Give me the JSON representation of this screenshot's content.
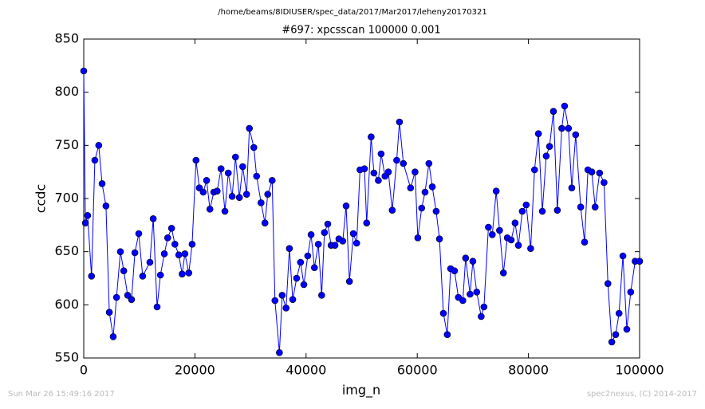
{
  "chart_data": {
    "type": "line",
    "suptitle": "/home/beams/8IDIUSER/spec_data/2017/Mar2017/leheny20170321",
    "title": "#697: xpcsscan 100000 0.001",
    "x_label": "img_n",
    "y_label": "ccdc",
    "footer_left": "Sun Mar 26 15:49:16 2017",
    "footer_right": "spec2nexus, (C) 2014-2017",
    "x": [
      0,
      300,
      700,
      1400,
      2000,
      2700,
      3300,
      4000,
      4600,
      5300,
      5900,
      6600,
      7200,
      7900,
      8600,
      9200,
      9900,
      10600,
      11900,
      12500,
      13200,
      13800,
      14500,
      15100,
      15800,
      16400,
      17100,
      17700,
      18200,
      18900,
      19500,
      20200,
      20800,
      21500,
      22100,
      22700,
      23400,
      24000,
      24700,
      25400,
      26000,
      26700,
      27300,
      28000,
      28600,
      29300,
      29800,
      30600,
      31100,
      31900,
      32600,
      33100,
      33900,
      34400,
      35200,
      35700,
      36400,
      37000,
      37600,
      38300,
      39000,
      39600,
      40300,
      40900,
      41500,
      42200,
      42800,
      43300,
      43900,
      44500,
      45200,
      45900,
      46600,
      47200,
      47800,
      48500,
      49100,
      49700,
      50500,
      50900,
      51700,
      52200,
      53000,
      53500,
      54200,
      54800,
      55500,
      56300,
      56800,
      57500,
      58800,
      59600,
      60100,
      60800,
      61400,
      62100,
      62700,
      63400,
      64000,
      64700,
      65400,
      66000,
      66700,
      67400,
      68200,
      68700,
      69500,
      70000,
      70700,
      71500,
      72000,
      72800,
      73500,
      74200,
      74800,
      75500,
      76200,
      76900,
      77600,
      78200,
      78900,
      79600,
      80400,
      81100,
      81800,
      82500,
      83200,
      83800,
      84500,
      85200,
      86000,
      86500,
      87200,
      87800,
      88500,
      89400,
      90100,
      90700,
      91400,
      92000,
      92800,
      93600,
      94300,
      95000,
      95700,
      96300,
      97000,
      97700,
      98400,
      99200,
      100000
    ],
    "series": [
      {
        "name": "ccdc",
        "color": "#0000ff",
        "values": [
          820,
          677,
          684,
          627,
          736,
          750,
          714,
          693,
          593,
          570,
          607,
          650,
          632,
          609,
          605,
          649,
          667,
          627,
          640,
          681,
          598,
          628,
          648,
          663,
          672,
          657,
          647,
          629,
          648,
          630,
          657,
          736,
          710,
          706,
          717,
          690,
          706,
          707,
          728,
          688,
          724,
          702,
          739,
          701,
          730,
          704,
          766,
          748,
          721,
          696,
          677,
          704,
          717,
          604,
          555,
          609,
          597,
          653,
          605,
          625,
          640,
          619,
          646,
          666,
          635,
          657,
          609,
          668,
          676,
          656,
          656,
          662,
          660,
          693,
          622,
          667,
          658,
          727,
          728,
          677,
          758,
          724,
          717,
          742,
          721,
          725,
          689,
          736,
          772,
          733,
          710,
          725,
          663,
          691,
          706,
          733,
          711,
          688,
          662,
          592,
          572,
          634,
          632,
          607,
          604,
          644,
          610,
          641,
          612,
          589,
          598,
          673,
          666,
          707,
          670,
          630,
          663,
          661,
          677,
          656,
          688,
          694,
          653,
          727,
          761,
          688,
          740,
          749,
          782,
          689,
          766,
          787,
          766,
          710,
          760,
          692,
          659,
          727,
          725,
          692,
          724,
          715,
          620,
          565,
          572,
          592,
          646,
          577,
          612,
          641,
          641
        ]
      }
    ],
    "xlim": [
      0,
      100000
    ],
    "ylim": [
      550,
      850
    ],
    "xticks": [
      0,
      20000,
      40000,
      60000,
      80000,
      100000
    ],
    "yticks": [
      550,
      600,
      650,
      700,
      750,
      800,
      850
    ],
    "grid": false
  }
}
